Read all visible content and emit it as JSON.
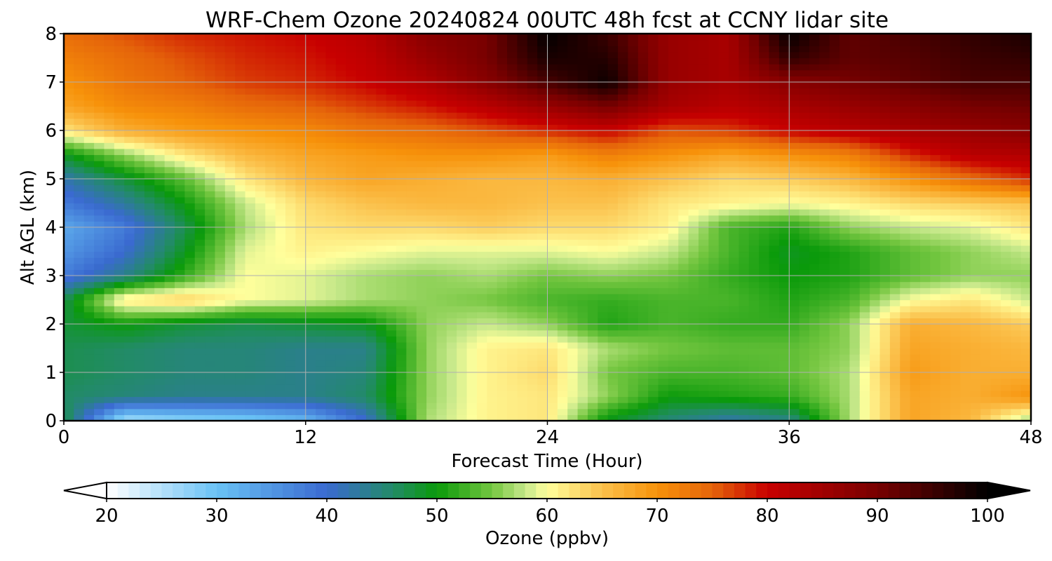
{
  "chart_data": {
    "type": "heatmap",
    "title": "WRF-Chem Ozone  20240824 00UTC 48h fcst at CCNY lidar site",
    "xlabel": "Forecast Time (Hour)",
    "ylabel": "Alt AGL (km)",
    "xlim": [
      0,
      48
    ],
    "ylim": [
      0,
      8
    ],
    "xticks": [
      0,
      12,
      24,
      36,
      48
    ],
    "yticks": [
      0,
      1,
      2,
      3,
      4,
      5,
      6,
      7,
      8
    ],
    "grid": true,
    "x_hours": [
      0,
      3,
      6,
      9,
      12,
      15,
      18,
      21,
      24,
      27,
      30,
      33,
      36,
      39,
      42,
      45,
      48
    ],
    "y_km": [
      0,
      0.5,
      1,
      1.5,
      2,
      2.5,
      3,
      3.5,
      4,
      4.5,
      5,
      5.5,
      6,
      6.5,
      7,
      7.5,
      8
    ],
    "ozone_ppbv": [
      [
        48,
        25,
        27,
        28,
        31,
        40,
        57,
        61,
        62,
        49,
        45,
        42,
        44,
        57,
        68,
        66,
        56
      ],
      [
        46,
        45,
        44,
        44,
        44,
        46,
        56,
        61,
        62,
        56,
        50,
        51,
        52,
        57,
        68,
        67,
        70
      ],
      [
        47,
        46,
        45,
        45,
        44,
        45,
        56,
        61,
        63,
        55,
        53,
        53,
        54,
        57,
        69,
        67,
        67
      ],
      [
        47,
        46,
        45,
        45,
        44,
        44,
        56,
        61,
        62,
        57,
        55,
        54,
        54,
        56,
        68,
        67,
        66
      ],
      [
        48,
        50,
        48,
        47,
        48,
        49,
        56,
        58,
        56,
        51,
        53,
        52,
        52,
        56,
        67,
        66,
        64
      ],
      [
        47,
        62,
        64,
        60,
        59,
        57,
        56,
        55,
        53,
        52,
        53,
        53,
        51,
        53,
        60,
        62,
        58
      ],
      [
        38,
        44,
        52,
        60,
        59,
        57,
        56,
        57,
        55,
        56,
        55,
        52,
        50,
        51,
        54,
        56,
        56
      ],
      [
        35,
        40,
        49,
        59,
        61,
        60,
        59,
        59,
        59,
        60,
        58,
        53,
        49,
        51,
        54,
        56,
        58
      ],
      [
        33,
        38,
        47,
        57,
        62,
        63,
        63,
        64,
        63,
        63,
        61,
        53,
        51,
        56,
        58,
        59,
        62
      ],
      [
        38,
        43,
        50,
        58,
        63,
        65,
        66,
        66,
        65,
        65,
        62,
        61,
        60,
        61,
        63,
        64,
        65
      ],
      [
        42,
        48,
        54,
        62,
        66,
        68,
        67,
        66,
        66,
        67,
        65,
        63,
        64,
        66,
        70,
        74,
        78
      ],
      [
        49,
        56,
        62,
        66,
        68,
        69,
        70,
        70,
        69,
        72,
        70,
        68,
        70,
        72,
        78,
        82,
        83
      ],
      [
        62,
        67,
        69,
        70,
        71,
        73,
        74,
        76,
        78,
        80,
        76,
        77,
        80,
        82,
        84,
        86,
        88
      ],
      [
        68,
        71,
        72,
        74,
        75,
        77,
        79,
        82,
        86,
        90,
        84,
        82,
        84,
        86,
        88,
        90,
        91
      ],
      [
        70,
        73,
        75,
        77,
        78,
        80,
        83,
        88,
        94,
        99,
        86,
        84,
        88,
        90,
        92,
        94,
        94
      ],
      [
        72,
        74,
        76,
        78,
        79,
        81,
        86,
        90,
        98,
        97,
        86,
        84,
        96,
        92,
        93,
        95,
        96
      ],
      [
        74,
        76,
        78,
        79,
        80,
        82,
        88,
        90,
        100,
        95,
        86,
        84,
        100,
        92,
        94,
        96,
        98
      ]
    ],
    "colorbar": {
      "label": "Ozone  (ppbv)",
      "min": 20,
      "max": 100,
      "ticks": [
        20,
        30,
        40,
        50,
        60,
        70,
        80,
        90,
        100
      ],
      "extend": "both",
      "colors": [
        [
          20,
          "#ffffff"
        ],
        [
          30,
          "#69c2f5"
        ],
        [
          40,
          "#3a6ad0"
        ],
        [
          46,
          "#228b67"
        ],
        [
          50,
          "#0a9a0a"
        ],
        [
          55,
          "#74c640"
        ],
        [
          58,
          "#c6e88a"
        ],
        [
          60,
          "#ffff9c"
        ],
        [
          65,
          "#fbc14c"
        ],
        [
          70,
          "#f7920a"
        ],
        [
          75,
          "#e5640a"
        ],
        [
          80,
          "#c80000"
        ],
        [
          90,
          "#780000"
        ],
        [
          100,
          "#000000"
        ]
      ]
    }
  }
}
